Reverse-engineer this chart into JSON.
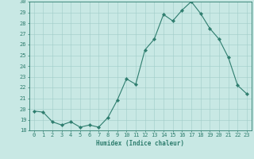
{
  "x": [
    0,
    1,
    2,
    3,
    4,
    5,
    6,
    7,
    8,
    9,
    10,
    11,
    12,
    13,
    14,
    15,
    16,
    17,
    18,
    19,
    20,
    21,
    22,
    23
  ],
  "y": [
    19.8,
    19.7,
    18.8,
    18.5,
    18.8,
    18.3,
    18.5,
    18.3,
    19.2,
    20.8,
    22.8,
    22.3,
    25.5,
    26.5,
    28.8,
    28.2,
    29.2,
    30.0,
    28.9,
    27.5,
    26.5,
    24.8,
    22.2,
    21.4
  ],
  "line_color": "#2e7d6e",
  "marker": "D",
  "marker_size": 2.2,
  "bg_color": "#c8e8e4",
  "grid_color": "#a0ccc8",
  "xlabel": "Humidex (Indice chaleur)",
  "ylim": [
    18,
    30
  ],
  "xlim": [
    -0.5,
    23.5
  ],
  "yticks": [
    18,
    19,
    20,
    21,
    22,
    23,
    24,
    25,
    26,
    27,
    28,
    29,
    30
  ],
  "xticks": [
    0,
    1,
    2,
    3,
    4,
    5,
    6,
    7,
    8,
    9,
    10,
    11,
    12,
    13,
    14,
    15,
    16,
    17,
    18,
    19,
    20,
    21,
    22,
    23
  ],
  "label_fontsize": 5.5,
  "tick_fontsize": 5.0
}
